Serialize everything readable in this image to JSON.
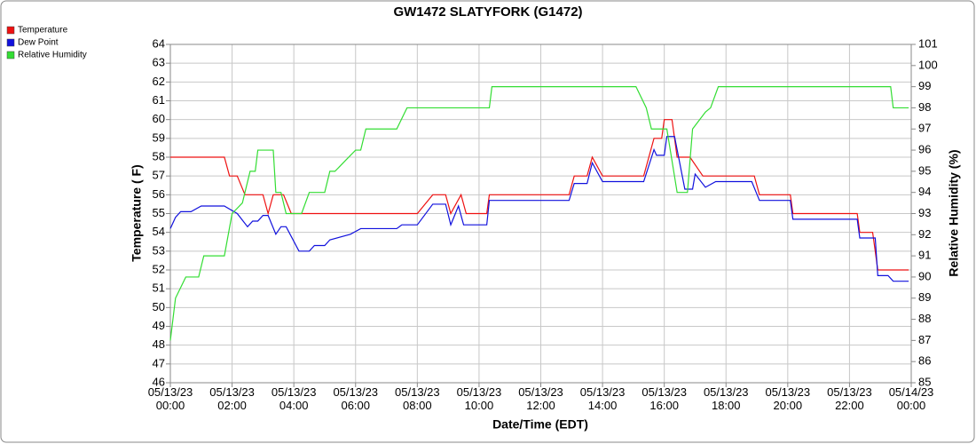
{
  "chart_data": {
    "type": "line",
    "title": "GW1472 SLATYFORK (G1472)",
    "x_label": "Date/Time (EDT)",
    "y_label": "Temperature ( F)",
    "y2_label": "Relative Humidity (%)",
    "xlim": [
      "05/13/23 00:00",
      "05/14/23 00:00"
    ],
    "xticks": [
      "05/13/23 00:00",
      "05/13/23 02:00",
      "05/13/23 04:00",
      "05/13/23 06:00",
      "05/13/23 08:00",
      "05/13/23 10:00",
      "05/13/23 12:00",
      "05/13/23 14:00",
      "05/13/23 16:00",
      "05/13/23 18:00",
      "05/13/23 20:00",
      "05/13/23 22:00",
      "05/14/23 00:00"
    ],
    "ylim": [
      46,
      64
    ],
    "yticks": [
      46,
      47,
      48,
      49,
      50,
      51,
      52,
      53,
      54,
      55,
      56,
      57,
      58,
      59,
      60,
      61,
      62,
      63,
      64
    ],
    "y2lim": [
      85,
      101
    ],
    "y2ticks": [
      85,
      86,
      87,
      88,
      89,
      90,
      91,
      92,
      93,
      94,
      95,
      96,
      97,
      98,
      99,
      100,
      101
    ],
    "grid": true,
    "legend": "top-left",
    "series": [
      {
        "name": "Temperature",
        "color": "#ee1111",
        "x": [
          "05/13/23 00:00",
          "05/13/23 01:45",
          "05/13/23 01:55",
          "05/13/23 02:10",
          "05/13/23 02:25",
          "05/13/23 03:00",
          "05/13/23 03:10",
          "05/13/23 03:20",
          "05/13/23 03:40",
          "05/13/23 03:55",
          "05/13/23 08:00",
          "05/13/23 08:30",
          "05/13/23 08:55",
          "05/13/23 09:05",
          "05/13/23 09:25",
          "05/13/23 09:35",
          "05/13/23 10:15",
          "05/13/23 10:20",
          "05/13/23 12:55",
          "05/13/23 13:05",
          "05/13/23 13:30",
          "05/13/23 13:40",
          "05/13/23 14:00",
          "05/13/23 15:20",
          "05/13/23 15:40",
          "05/13/23 15:55",
          "05/13/23 16:00",
          "05/13/23 16:15",
          "05/13/23 16:25",
          "05/13/23 16:50",
          "05/13/23 17:15",
          "05/13/23 18:55",
          "05/13/23 19:05",
          "05/13/23 20:05",
          "05/13/23 20:10",
          "05/13/23 22:15",
          "05/13/23 22:20",
          "05/13/23 22:45",
          "05/13/23 22:55",
          "05/13/23 23:55"
        ],
        "values": [
          58,
          58,
          57,
          57,
          56,
          56,
          55,
          56,
          56,
          55,
          55,
          56,
          56,
          55,
          56,
          55,
          55,
          56,
          56,
          57,
          57,
          58,
          57,
          57,
          59,
          59,
          60,
          60,
          58,
          58,
          57,
          57,
          56,
          56,
          55,
          55,
          54,
          54,
          52,
          52
        ]
      },
      {
        "name": "Dew Point",
        "color": "#1111dd",
        "x": [
          "05/13/23 00:00",
          "05/13/23 00:10",
          "05/13/23 00:20",
          "05/13/23 00:40",
          "05/13/23 01:00",
          "05/13/23 01:45",
          "05/13/23 02:10",
          "05/13/23 02:30",
          "05/13/23 02:40",
          "05/13/23 02:50",
          "05/13/23 03:00",
          "05/13/23 03:10",
          "05/13/23 03:25",
          "05/13/23 03:35",
          "05/13/23 03:45",
          "05/13/23 04:10",
          "05/13/23 04:30",
          "05/13/23 04:40",
          "05/13/23 05:00",
          "05/13/23 05:10",
          "05/13/23 05:50",
          "05/13/23 06:10",
          "05/13/23 07:20",
          "05/13/23 07:30",
          "05/13/23 08:00",
          "05/13/23 08:30",
          "05/13/23 08:55",
          "05/13/23 09:05",
          "05/13/23 09:20",
          "05/13/23 09:30",
          "05/13/23 10:15",
          "05/13/23 10:20",
          "05/13/23 12:55",
          "05/13/23 13:05",
          "05/13/23 13:30",
          "05/13/23 13:40",
          "05/13/23 14:00",
          "05/13/23 15:20",
          "05/13/23 15:40",
          "05/13/23 15:45",
          "05/13/23 16:00",
          "05/13/23 16:05",
          "05/13/23 16:20",
          "05/13/23 16:40",
          "05/13/23 16:55",
          "05/13/23 17:00",
          "05/13/23 17:20",
          "05/13/23 17:40",
          "05/13/23 18:50",
          "05/13/23 19:05",
          "05/13/23 20:05",
          "05/13/23 20:10",
          "05/13/23 22:15",
          "05/13/23 22:20",
          "05/13/23 22:50",
          "05/13/23 22:55",
          "05/13/23 23:15",
          "05/13/23 23:25",
          "05/13/23 23:55"
        ],
        "values": [
          54.2,
          54.8,
          55.1,
          55.1,
          55.4,
          55.4,
          55.0,
          54.3,
          54.6,
          54.6,
          54.9,
          54.9,
          53.9,
          54.3,
          54.3,
          53.0,
          53.0,
          53.3,
          53.3,
          53.6,
          53.9,
          54.2,
          54.2,
          54.4,
          54.4,
          55.5,
          55.5,
          54.4,
          55.4,
          54.4,
          54.4,
          55.7,
          55.7,
          56.6,
          56.6,
          57.7,
          56.7,
          56.7,
          58.4,
          58.1,
          58.1,
          59.1,
          59.1,
          56.3,
          56.3,
          57.1,
          56.4,
          56.7,
          56.7,
          55.7,
          55.7,
          54.7,
          54.7,
          53.7,
          53.7,
          51.7,
          51.7,
          51.4,
          51.4
        ]
      },
      {
        "name": "Relative Humidity",
        "color": "#33dd33",
        "axis": "y2",
        "x": [
          "05/13/23 00:00",
          "05/13/23 00:10",
          "05/13/23 00:30",
          "05/13/23 00:55",
          "05/13/23 01:05",
          "05/13/23 01:45",
          "05/13/23 02:00",
          "05/13/23 02:20",
          "05/13/23 02:35",
          "05/13/23 02:45",
          "05/13/23 02:50",
          "05/13/23 03:20",
          "05/13/23 03:25",
          "05/13/23 03:35",
          "05/13/23 03:45",
          "05/13/23 04:15",
          "05/13/23 04:30",
          "05/13/23 05:00",
          "05/13/23 05:10",
          "05/13/23 05:20",
          "05/13/23 05:40",
          "05/13/23 06:00",
          "05/13/23 06:10",
          "05/13/23 06:20",
          "05/13/23 07:20",
          "05/13/23 07:40",
          "05/13/23 10:20",
          "05/13/23 10:25",
          "05/13/23 15:05",
          "05/13/23 15:25",
          "05/13/23 15:35",
          "05/13/23 16:05",
          "05/13/23 16:25",
          "05/13/23 16:45",
          "05/13/23 16:55",
          "05/13/23 17:20",
          "05/13/23 17:30",
          "05/13/23 17:45",
          "05/13/23 23:20",
          "05/13/23 23:25",
          "05/13/23 23:55"
        ],
        "values": [
          87,
          89,
          90,
          90,
          91,
          91,
          93,
          93.5,
          95,
          95,
          96,
          96,
          94,
          94,
          93,
          93,
          94,
          94,
          95,
          95,
          95.5,
          96,
          96,
          97,
          97,
          98,
          98,
          99,
          99,
          98,
          97,
          97,
          94,
          94,
          97,
          97.8,
          98,
          99,
          99,
          98,
          98
        ]
      }
    ]
  }
}
